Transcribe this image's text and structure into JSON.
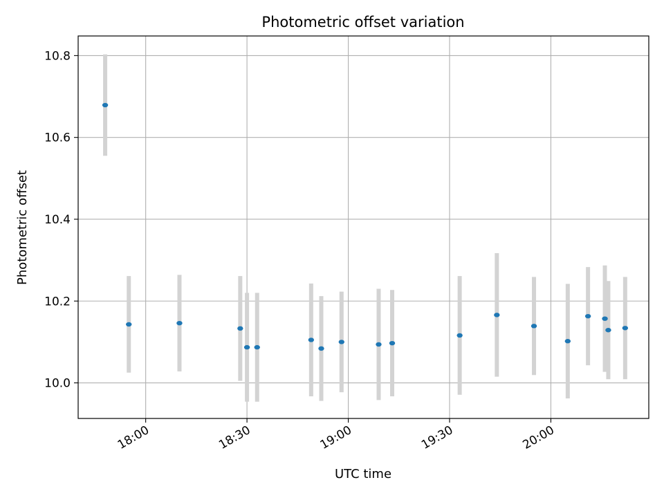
{
  "chart_data": {
    "type": "scatter",
    "title": "Photometric offset variation",
    "xlabel": "UTC time",
    "ylabel": "Photometric offset",
    "x_is_time": true,
    "xlim": [
      "17:40",
      "20:29"
    ],
    "ylim": [
      9.913,
      10.848
    ],
    "x_ticks": [
      "18:00",
      "18:30",
      "19:00",
      "19:30",
      "20:00"
    ],
    "y_ticks": [
      10.0,
      10.2,
      10.4,
      10.6,
      10.8
    ],
    "y_tick_labels": [
      "10.0",
      "10.2",
      "10.4",
      "10.6",
      "10.8"
    ],
    "grid": true,
    "colors": {
      "points": "#1f77b4",
      "error_bars": "#d3d3d3"
    },
    "series": [
      {
        "points": [
          {
            "x": "17:48",
            "y": 10.679,
            "yerr": 0.124
          },
          {
            "x": "17:55",
            "y": 10.143,
            "yerr": 0.118
          },
          {
            "x": "18:10",
            "y": 10.146,
            "yerr": 0.118
          },
          {
            "x": "18:28",
            "y": 10.133,
            "yerr": 0.128
          },
          {
            "x": "18:30",
            "y": 10.087,
            "yerr": 0.133
          },
          {
            "x": "18:33",
            "y": 10.087,
            "yerr": 0.133
          },
          {
            "x": "18:49",
            "y": 10.105,
            "yerr": 0.138
          },
          {
            "x": "18:52",
            "y": 10.084,
            "yerr": 0.128
          },
          {
            "x": "18:58",
            "y": 10.1,
            "yerr": 0.123
          },
          {
            "x": "19:09",
            "y": 10.094,
            "yerr": 0.136
          },
          {
            "x": "19:13",
            "y": 10.097,
            "yerr": 0.13
          },
          {
            "x": "19:33",
            "y": 10.116,
            "yerr": 0.145
          },
          {
            "x": "19:44",
            "y": 10.166,
            "yerr": 0.151
          },
          {
            "x": "19:55",
            "y": 10.139,
            "yerr": 0.12
          },
          {
            "x": "20:05",
            "y": 10.102,
            "yerr": 0.14
          },
          {
            "x": "20:11",
            "y": 10.163,
            "yerr": 0.12
          },
          {
            "x": "20:16",
            "y": 10.157,
            "yerr": 0.13
          },
          {
            "x": "20:17",
            "y": 10.129,
            "yerr": 0.12
          },
          {
            "x": "20:22",
            "y": 10.134,
            "yerr": 0.125
          }
        ]
      }
    ]
  }
}
